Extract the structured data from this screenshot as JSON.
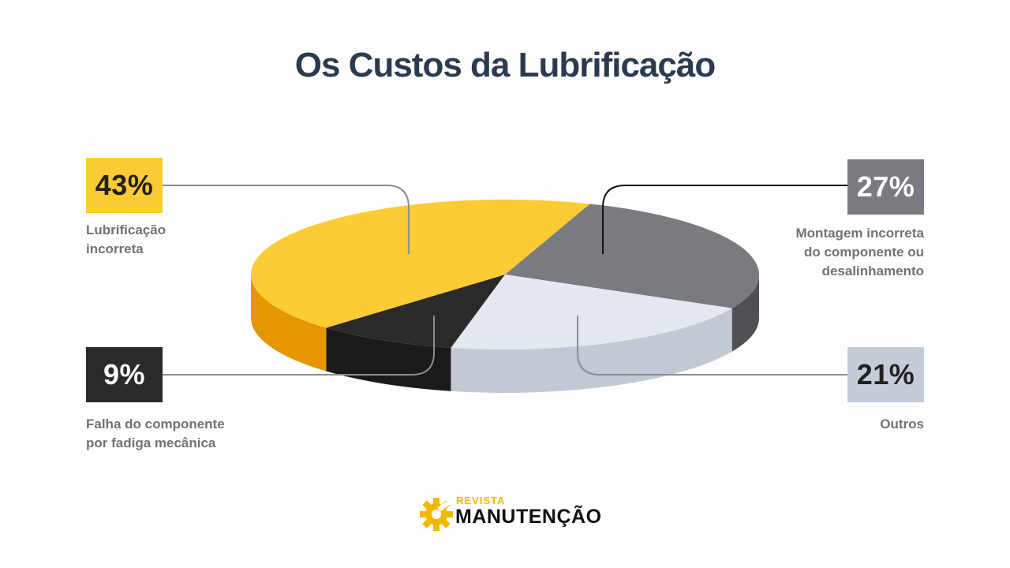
{
  "title": "Os Custos da Lubrificação",
  "chart_data": {
    "type": "pie",
    "title": "Os Custos da Lubrificação",
    "slices": [
      {
        "label": "Lubrificação\nincorreta",
        "value": 43,
        "display": "43%",
        "color": "#fdcb33",
        "side_color": "#e49700",
        "box_color": "#fdcb33",
        "box_text_color": "#222222"
      },
      {
        "label": "Montagem incorreta\ndo componente ou\ndesalinhamento",
        "value": 27,
        "display": "27%",
        "color": "#797b80",
        "side_color": "#4f5155",
        "box_color": "#797b80",
        "box_text_color": "#ffffff"
      },
      {
        "label": "Outros",
        "value": 21,
        "display": "21%",
        "color": "#e4e8ef",
        "side_color": "#c1c9d4",
        "box_color": "#c3ccd7",
        "box_text_color": "#222222"
      },
      {
        "label": "Falha do componente\npor fadiga mecânica",
        "value": 9,
        "display": "9%",
        "color": "#2b2a28",
        "side_color": "#1a1a1a",
        "box_color": "#2b2a28",
        "box_text_color": "#ffffff"
      }
    ]
  },
  "logo": {
    "line1": "REVISTA",
    "line2": "MANUTENÇÃO"
  }
}
